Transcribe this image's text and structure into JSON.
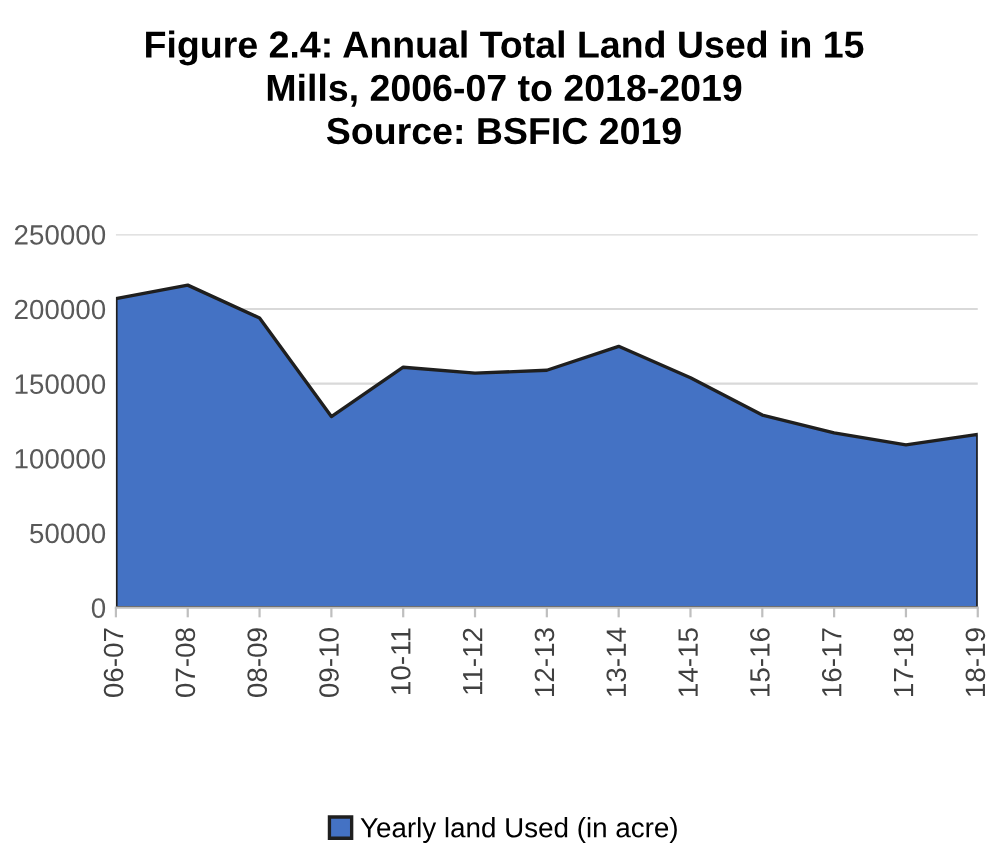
{
  "chart_data": {
    "type": "area",
    "title": "Figure 2.4: Annual Total Land Used in 15\nMills, 2006-07 to 2018-2019\nSource: BSFIC 2019",
    "categories": [
      "06-07",
      "07-08",
      "08-09",
      "09-10",
      "10-11",
      "11-12",
      "12-13",
      "13-14",
      "14-15",
      "15-16",
      "16-17",
      "17-18",
      "18-19"
    ],
    "series": [
      {
        "name": "Yearly land Used (in acre)",
        "color": "#4472c4",
        "values": [
          207000,
          216000,
          194000,
          128000,
          161000,
          157000,
          159000,
          175000,
          154000,
          129000,
          117000,
          109000,
          116000
        ]
      }
    ],
    "ylim": [
      0,
      250000
    ],
    "yticks": [
      0,
      50000,
      100000,
      150000,
      200000,
      250000
    ],
    "grid": "y",
    "legend": "bottom"
  }
}
